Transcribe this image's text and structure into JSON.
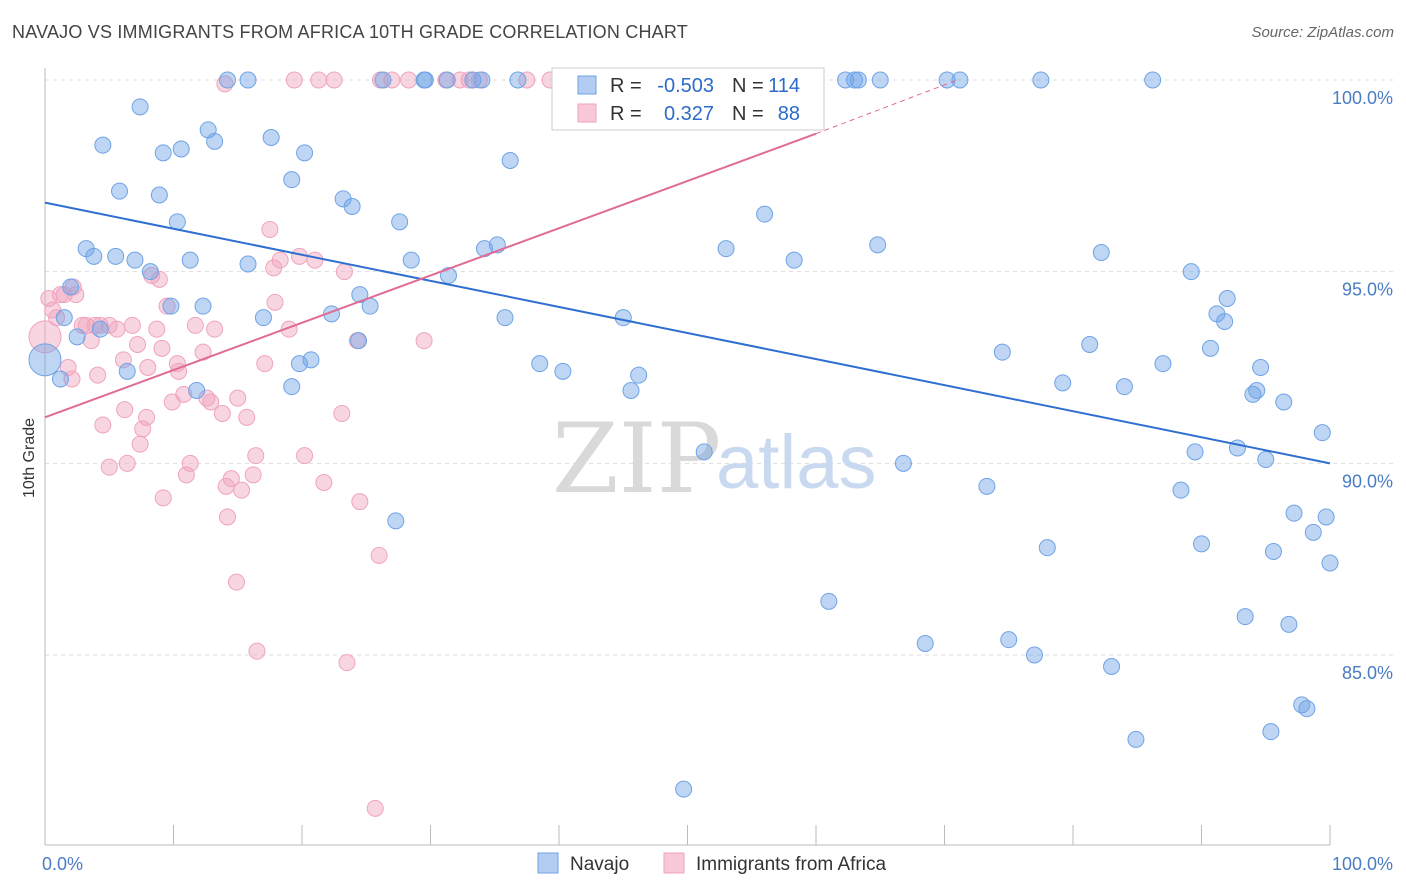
{
  "title": "NAVAJO VS IMMIGRANTS FROM AFRICA 10TH GRADE CORRELATION CHART",
  "source": "Source: ZipAtlas.com",
  "watermark": {
    "zip": "ZIP",
    "atlas": "atlas"
  },
  "colors": {
    "navajo": "#6fa3e6",
    "navajo_line": "#2f6fd0",
    "africa": "#f0a3bd",
    "africa_line": "#e06b96",
    "grid": "#dddddd",
    "axis_text": "#4a7cc4"
  },
  "legend": {
    "r_label": "R =",
    "n_label": "N =",
    "rows": [
      {
        "r": "-0.503",
        "n": "114"
      },
      {
        "r": "0.327",
        "n": "88"
      }
    ]
  },
  "bottom_legend": [
    "Navajo",
    "Immigrants from Africa"
  ],
  "chart_data": {
    "type": "scatter",
    "title": "NAVAJO VS IMMIGRANTS FROM AFRICA 10TH GRADE CORRELATION CHART",
    "xlabel": "",
    "ylabel": "10th Grade",
    "xlim": [
      0,
      100
    ],
    "ylim": [
      80.5,
      100.5
    ],
    "x_tick_labels": [
      "0.0%",
      "100.0%"
    ],
    "y_ticks": [
      85,
      90,
      95,
      100
    ],
    "y_tick_labels": [
      "85.0%",
      "90.0%",
      "95.0%",
      "100.0%"
    ],
    "grid": true,
    "series": [
      {
        "name": "Navajo",
        "r": -0.503,
        "n": 114,
        "trend": {
          "x": [
            0,
            100
          ],
          "y": [
            96.8,
            90.0
          ]
        },
        "points": [
          [
            0,
            92.7
          ],
          [
            1.2,
            92.2
          ],
          [
            1.5,
            93.8
          ],
          [
            2,
            94.6
          ],
          [
            2.5,
            93.3
          ],
          [
            3.2,
            95.6
          ],
          [
            3.8,
            95.4
          ],
          [
            4.5,
            98.3
          ],
          [
            4.3,
            93.5
          ],
          [
            5.5,
            95.4
          ],
          [
            5.8,
            97.1
          ],
          [
            6.4,
            92.4
          ],
          [
            7.0,
            95.3
          ],
          [
            7.4,
            99.3
          ],
          [
            8.2,
            95.0
          ],
          [
            8.9,
            97.0
          ],
          [
            9.2,
            98.1
          ],
          [
            9.8,
            94.1
          ],
          [
            10.3,
            96.3
          ],
          [
            10.6,
            98.2
          ],
          [
            11.3,
            95.3
          ],
          [
            11.8,
            91.9
          ],
          [
            12.3,
            94.1
          ],
          [
            12.7,
            98.7
          ],
          [
            13.2,
            98.4
          ],
          [
            14.2,
            100.0
          ],
          [
            15.8,
            100.0
          ],
          [
            15.8,
            95.2
          ],
          [
            17.0,
            93.8
          ],
          [
            17.6,
            98.5
          ],
          [
            19.2,
            97.4
          ],
          [
            19.2,
            92.0
          ],
          [
            19.8,
            92.6
          ],
          [
            20.2,
            98.1
          ],
          [
            20.7,
            92.7
          ],
          [
            22.3,
            93.9
          ],
          [
            23.2,
            96.9
          ],
          [
            23.9,
            96.7
          ],
          [
            24.4,
            93.2
          ],
          [
            24.5,
            94.4
          ],
          [
            25.3,
            94.1
          ],
          [
            26.3,
            100.0
          ],
          [
            27.3,
            88.5
          ],
          [
            27.6,
            96.3
          ],
          [
            28.5,
            95.3
          ],
          [
            29.5,
            100.0
          ],
          [
            29.6,
            100.0
          ],
          [
            31.3,
            100.0
          ],
          [
            31.4,
            94.9
          ],
          [
            33.3,
            100.0
          ],
          [
            34.0,
            100.0
          ],
          [
            34.2,
            95.6
          ],
          [
            35.2,
            95.7
          ],
          [
            35.8,
            93.8
          ],
          [
            36.2,
            97.9
          ],
          [
            36.8,
            100.0
          ],
          [
            38.5,
            92.6
          ],
          [
            40.3,
            92.4
          ],
          [
            41.5,
            100.0
          ],
          [
            45.0,
            93.8
          ],
          [
            45.6,
            91.9
          ],
          [
            46.2,
            92.3
          ],
          [
            49.7,
            81.5
          ],
          [
            51.3,
            90.3
          ],
          [
            53.0,
            95.6
          ],
          [
            56.0,
            96.5
          ],
          [
            58.3,
            95.3
          ],
          [
            61.0,
            86.4
          ],
          [
            62.3,
            100.0
          ],
          [
            63.0,
            100.0
          ],
          [
            63.3,
            100.0
          ],
          [
            65.0,
            100.0
          ],
          [
            64.8,
            95.7
          ],
          [
            66.8,
            90.0
          ],
          [
            68.5,
            85.3
          ],
          [
            70.2,
            100.0
          ],
          [
            71.2,
            100.0
          ],
          [
            73.3,
            89.4
          ],
          [
            74.5,
            92.9
          ],
          [
            75.0,
            85.4
          ],
          [
            77.0,
            85.0
          ],
          [
            77.5,
            100.0
          ],
          [
            78.0,
            87.8
          ],
          [
            79.2,
            92.1
          ],
          [
            81.3,
            93.1
          ],
          [
            82.2,
            95.5
          ],
          [
            83.0,
            84.7
          ],
          [
            84.0,
            92.0
          ],
          [
            84.9,
            82.8
          ],
          [
            86.2,
            100.0
          ],
          [
            87.0,
            92.6
          ],
          [
            88.4,
            89.3
          ],
          [
            89.2,
            95.0
          ],
          [
            89.5,
            90.3
          ],
          [
            90.0,
            87.9
          ],
          [
            90.7,
            93.0
          ],
          [
            91.2,
            93.9
          ],
          [
            91.8,
            93.7
          ],
          [
            92.0,
            94.3
          ],
          [
            92.8,
            90.4
          ],
          [
            93.4,
            86.0
          ],
          [
            94.0,
            91.8
          ],
          [
            94.3,
            91.9
          ],
          [
            94.6,
            92.5
          ],
          [
            95.0,
            90.1
          ],
          [
            95.4,
            83.0
          ],
          [
            95.6,
            87.7
          ],
          [
            96.4,
            91.6
          ],
          [
            96.8,
            85.8
          ],
          [
            97.2,
            88.7
          ],
          [
            97.8,
            83.7
          ],
          [
            98.2,
            83.6
          ],
          [
            98.7,
            88.2
          ],
          [
            99.4,
            90.8
          ],
          [
            99.7,
            88.6
          ],
          [
            100,
            87.4
          ]
        ]
      },
      {
        "name": "Immigrants from Africa",
        "r": 0.327,
        "n": 88,
        "trend": {
          "x": [
            0,
            60
          ],
          "y": [
            91.2,
            98.6
          ]
        },
        "trend_dashed": {
          "x": [
            60,
            71
          ],
          "y": [
            98.6,
            100.0
          ]
        },
        "points": [
          [
            0,
            93.3
          ],
          [
            0.3,
            94.3
          ],
          [
            0.6,
            94.0
          ],
          [
            0.9,
            93.8
          ],
          [
            1.2,
            94.4
          ],
          [
            1.5,
            94.4
          ],
          [
            1.8,
            92.5
          ],
          [
            2.1,
            92.2
          ],
          [
            2.2,
            94.6
          ],
          [
            2.4,
            94.4
          ],
          [
            2.9,
            93.6
          ],
          [
            3.2,
            93.6
          ],
          [
            3.6,
            93.2
          ],
          [
            3.9,
            93.6
          ],
          [
            4.1,
            92.3
          ],
          [
            4.3,
            93.6
          ],
          [
            4.5,
            91.0
          ],
          [
            5.0,
            93.6
          ],
          [
            5.0,
            89.9
          ],
          [
            5.6,
            93.5
          ],
          [
            6.1,
            92.7
          ],
          [
            6.2,
            91.4
          ],
          [
            6.4,
            90.0
          ],
          [
            6.8,
            93.6
          ],
          [
            7.2,
            93.1
          ],
          [
            7.4,
            90.5
          ],
          [
            7.6,
            90.9
          ],
          [
            7.9,
            91.2
          ],
          [
            8.0,
            92.5
          ],
          [
            8.3,
            94.9
          ],
          [
            8.7,
            93.5
          ],
          [
            8.9,
            94.8
          ],
          [
            9.1,
            93.0
          ],
          [
            9.2,
            89.1
          ],
          [
            9.5,
            94.1
          ],
          [
            9.9,
            91.6
          ],
          [
            10.3,
            92.6
          ],
          [
            10.4,
            92.4
          ],
          [
            10.8,
            91.8
          ],
          [
            11.0,
            89.7
          ],
          [
            11.3,
            90.0
          ],
          [
            11.7,
            93.6
          ],
          [
            12.3,
            92.9
          ],
          [
            12.6,
            91.7
          ],
          [
            12.9,
            91.6
          ],
          [
            13.2,
            93.5
          ],
          [
            13.8,
            91.3
          ],
          [
            14.1,
            89.4
          ],
          [
            14.2,
            88.6
          ],
          [
            14.5,
            89.6
          ],
          [
            14.9,
            86.9
          ],
          [
            15.0,
            91.7
          ],
          [
            15.3,
            89.3
          ],
          [
            15.7,
            91.2
          ],
          [
            16.2,
            89.7
          ],
          [
            16.4,
            90.2
          ],
          [
            16.5,
            85.1
          ],
          [
            17.1,
            92.6
          ],
          [
            17.5,
            96.1
          ],
          [
            17.8,
            95.1
          ],
          [
            17.9,
            94.2
          ],
          [
            18.3,
            95.3
          ],
          [
            19.0,
            93.5
          ],
          [
            19.4,
            100.0
          ],
          [
            19.8,
            95.4
          ],
          [
            20.2,
            90.2
          ],
          [
            21.0,
            95.3
          ],
          [
            21.3,
            100.0
          ],
          [
            21.7,
            89.5
          ],
          [
            22.5,
            100.0
          ],
          [
            23.1,
            91.3
          ],
          [
            23.3,
            95.0
          ],
          [
            23.5,
            84.8
          ],
          [
            24.3,
            93.2
          ],
          [
            24.5,
            89.0
          ],
          [
            26.0,
            87.6
          ],
          [
            27.0,
            100.0
          ],
          [
            28.3,
            100.0
          ],
          [
            29.5,
            93.2
          ],
          [
            31.2,
            100.0
          ],
          [
            32.3,
            100.0
          ],
          [
            33.0,
            100.0
          ],
          [
            33.8,
            100.0
          ],
          [
            37.5,
            100.0
          ],
          [
            39.3,
            100.0
          ],
          [
            14.0,
            99.9
          ],
          [
            26.1,
            100.0
          ],
          [
            25.7,
            81.0
          ]
        ]
      }
    ]
  }
}
